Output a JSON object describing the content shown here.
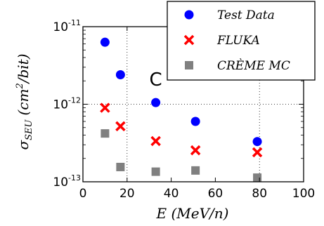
{
  "chart_data": {
    "type": "scatter",
    "x_axis": {
      "label": "E (MeV/n)",
      "range": [
        0,
        100
      ],
      "ticks": [
        0,
        20,
        40,
        60,
        80,
        100
      ]
    },
    "y_axis": {
      "label_prefix": "σ",
      "label_sub": "SEU",
      "label_open": "(cm",
      "label_sup": "2",
      "label_close": "/bit)",
      "scale": "log",
      "range": [
        1e-13,
        1e-11
      ],
      "ticks": [
        {
          "base": "10",
          "exp": "-13",
          "value": 1e-13
        },
        {
          "base": "10",
          "exp": "-12",
          "value": 1e-12
        },
        {
          "base": "10",
          "exp": "-11",
          "value": 1e-11
        }
      ]
    },
    "grid": "dotted, at x=20,80 and y=1e-12",
    "legend_position": "top-right",
    "annotation": {
      "text": "C",
      "x": 33,
      "y": 2.1e-12
    },
    "series": [
      {
        "name": "Test Data",
        "marker": "circle",
        "color": "#0000ff",
        "points": [
          [
            10,
            6.3e-12
          ],
          [
            17,
            2.4e-12
          ],
          [
            33,
            1.05e-12
          ],
          [
            51,
            6e-13
          ],
          [
            79,
            3.3e-13
          ]
        ]
      },
      {
        "name": "FLUKA",
        "marker": "x",
        "color": "#ff0000",
        "points": [
          [
            10,
            9e-13
          ],
          [
            17,
            5.2e-13
          ],
          [
            33,
            3.35e-13
          ],
          [
            51,
            2.55e-13
          ],
          [
            79,
            2.4e-13
          ]
        ]
      },
      {
        "name": "CRÈME MC",
        "marker": "square",
        "color": "#808080",
        "points": [
          [
            10,
            4.2e-13
          ],
          [
            17,
            1.55e-13
          ],
          [
            33,
            1.35e-13
          ],
          [
            51,
            1.4e-13
          ],
          [
            79,
            1.13e-13
          ]
        ]
      }
    ]
  }
}
